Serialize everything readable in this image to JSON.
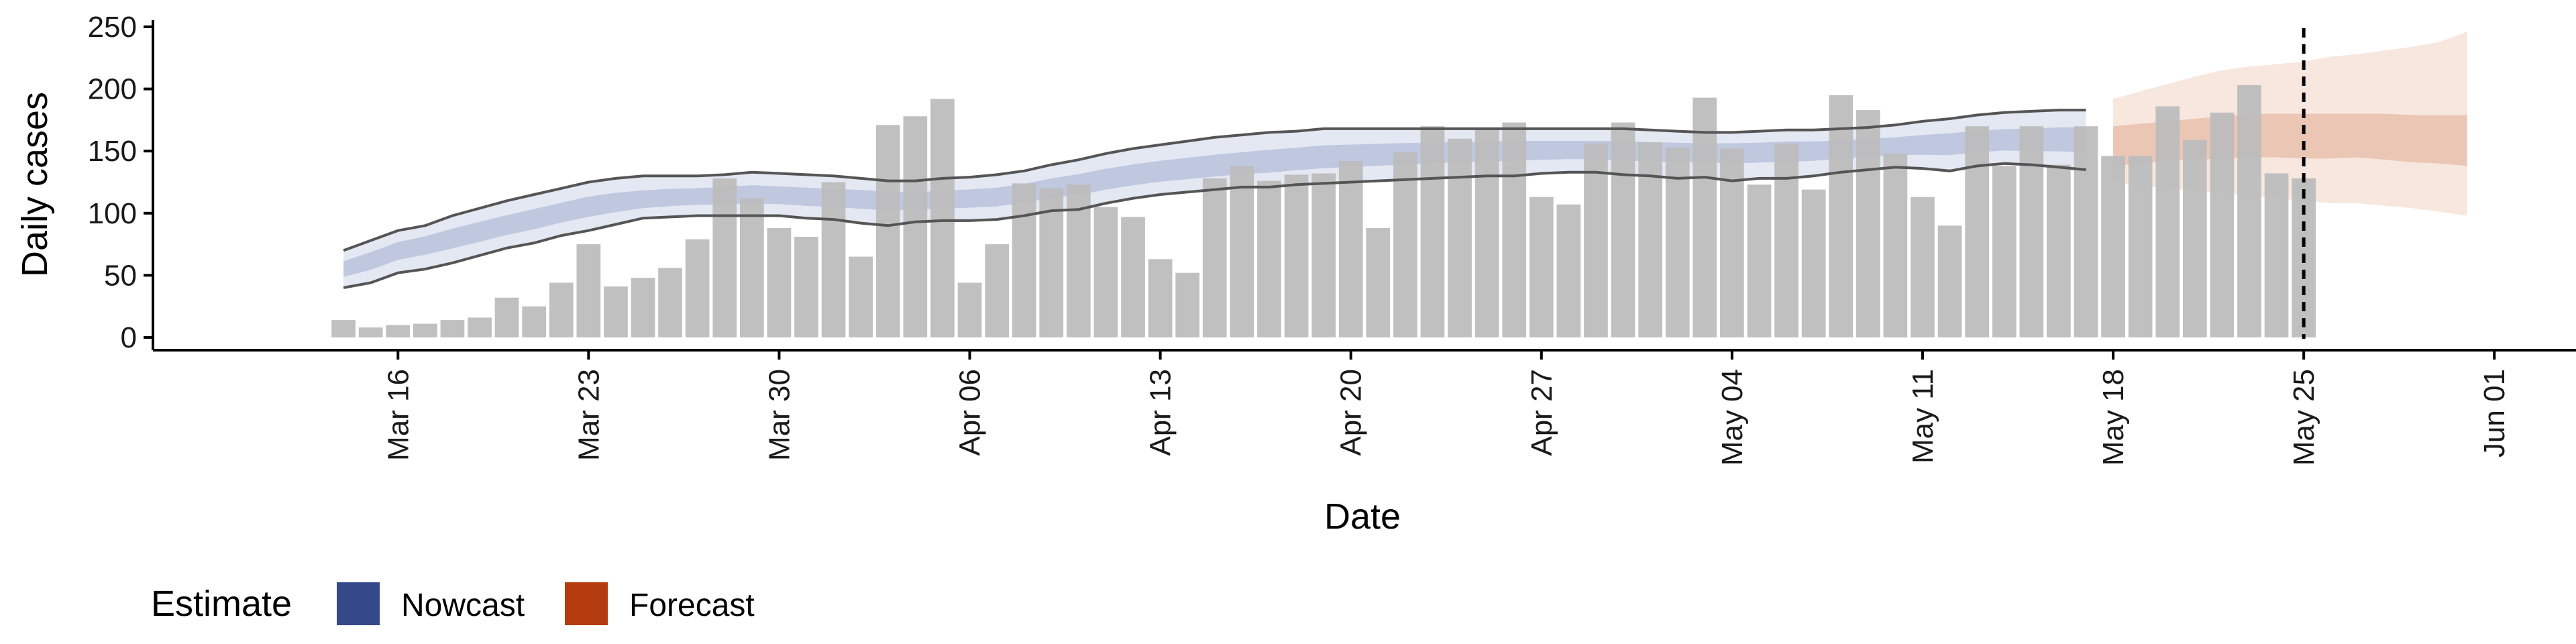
{
  "chart_data": {
    "type": "bar",
    "xlabel": "Date",
    "ylabel": "Daily cases",
    "ylim": [
      0,
      250
    ],
    "xlim": [
      "2020-03-07",
      "2020-06-04"
    ],
    "y_ticks": [
      0,
      50,
      100,
      150,
      200,
      250
    ],
    "x_ticks": [
      {
        "date": "2020-03-16",
        "label": "Mar 16"
      },
      {
        "date": "2020-03-23",
        "label": "Mar 23"
      },
      {
        "date": "2020-03-30",
        "label": "Mar 30"
      },
      {
        "date": "2020-04-06",
        "label": "Apr 06"
      },
      {
        "date": "2020-04-13",
        "label": "Apr 13"
      },
      {
        "date": "2020-04-20",
        "label": "Apr 20"
      },
      {
        "date": "2020-04-27",
        "label": "Apr 27"
      },
      {
        "date": "2020-05-04",
        "label": "May 04"
      },
      {
        "date": "2020-05-11",
        "label": "May 11"
      },
      {
        "date": "2020-05-18",
        "label": "May 18"
      },
      {
        "date": "2020-05-25",
        "label": "May 25"
      },
      {
        "date": "2020-06-01",
        "label": "Jun 01"
      }
    ],
    "cases": {
      "start_date": "2020-03-14",
      "values": [
        14,
        8,
        10,
        11,
        14,
        16,
        32,
        25,
        44,
        75,
        41,
        48,
        56,
        79,
        128,
        112,
        88,
        81,
        125,
        65,
        171,
        178,
        192,
        44,
        75,
        124,
        120,
        123,
        105,
        97,
        63,
        52,
        128,
        138,
        126,
        131,
        132,
        142,
        88,
        149,
        170,
        160,
        168,
        173,
        113,
        107,
        156,
        173,
        157,
        153,
        193,
        152,
        123,
        156,
        119,
        195,
        183,
        148,
        113,
        90,
        170,
        138,
        170,
        139,
        170,
        146,
        146,
        186,
        159,
        181,
        203,
        132,
        128
      ]
    },
    "reference_line": {
      "date": "2020-05-25",
      "style": "dashed"
    },
    "nowcast": {
      "start_date": "2020-03-14",
      "median": [
        55,
        62,
        70,
        75,
        80,
        85,
        90,
        95,
        100,
        105,
        108,
        110,
        112,
        113,
        114,
        115,
        114,
        113,
        112,
        112,
        111,
        110,
        111,
        112,
        113,
        116,
        120,
        123,
        127,
        130,
        133,
        135,
        137,
        139,
        141,
        143,
        145,
        146,
        147,
        148,
        149,
        150,
        150,
        151,
        151,
        151,
        151,
        151,
        150,
        150,
        150,
        150,
        150,
        151,
        151,
        152,
        153,
        154,
        155,
        156,
        157,
        158,
        158,
        159,
        159
      ],
      "lower_90": [
        40,
        44,
        52,
        55,
        60,
        66,
        72,
        76,
        82,
        86,
        91,
        96,
        97,
        98,
        98,
        98,
        98,
        96,
        95,
        92,
        90,
        93,
        94,
        94,
        95,
        98,
        102,
        103,
        108,
        112,
        115,
        117,
        119,
        121,
        121,
        123,
        124,
        125,
        126,
        127,
        128,
        129,
        130,
        130,
        132,
        133,
        133,
        131,
        130,
        128,
        129,
        126,
        128,
        128,
        130,
        133,
        135,
        137,
        136,
        134,
        138,
        140,
        139,
        137,
        135
      ],
      "upper_90": [
        70,
        78,
        86,
        90,
        98,
        104,
        110,
        115,
        120,
        125,
        128,
        130,
        130,
        130,
        131,
        133,
        132,
        131,
        130,
        128,
        126,
        126,
        128,
        129,
        131,
        134,
        139,
        143,
        148,
        152,
        155,
        158,
        161,
        163,
        165,
        166,
        168,
        168,
        168,
        168,
        168,
        168,
        168,
        168,
        168,
        168,
        168,
        168,
        167,
        166,
        165,
        165,
        166,
        167,
        167,
        168,
        169,
        171,
        174,
        176,
        179,
        181,
        182,
        183,
        183
      ]
    },
    "forecast": {
      "start_date": "2020-05-18",
      "median": [
        155,
        158,
        160,
        162,
        163,
        164,
        163,
        162,
        162,
        162,
        160,
        158,
        157,
        157
      ],
      "lower_50": [
        138,
        140,
        142,
        143,
        144,
        145,
        145,
        144,
        144,
        145,
        143,
        141,
        140,
        138
      ],
      "upper_50": [
        170,
        172,
        174,
        176,
        178,
        180,
        180,
        180,
        180,
        180,
        180,
        179,
        179,
        179
      ],
      "lower_90": [
        125,
        122,
        120,
        118,
        116,
        114,
        112,
        110,
        108,
        108,
        106,
        104,
        101,
        98
      ],
      "upper_90": [
        192,
        198,
        204,
        210,
        215,
        218,
        220,
        222,
        226,
        228,
        231,
        234,
        238,
        246
      ]
    },
    "legend": {
      "title": "Estimate",
      "position": "bottom-left",
      "items": [
        {
          "label": "Nowcast",
          "color": "#34488a"
        },
        {
          "label": "Forecast",
          "color": "#b43c0f"
        }
      ]
    },
    "colors": {
      "bar": "#bdbdbd",
      "nowcast_band_outer": "#e4e8f3",
      "nowcast_band_inner": "#bfc8df",
      "nowcast_bound_line": "#555555",
      "forecast_band_outer": "#f7e7de",
      "forecast_band_inner": "#ebc6b4"
    },
    "grid": false
  }
}
